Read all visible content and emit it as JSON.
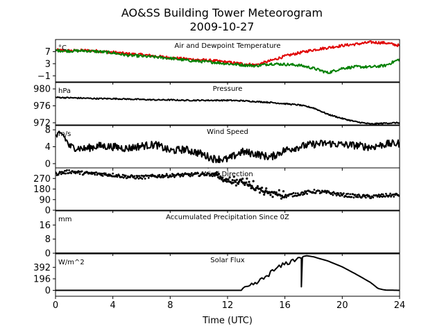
{
  "figure": {
    "title_line1": "AO&SS Building Tower Meteorogram",
    "title_line2": "2009-10-27",
    "xlabel": "Time (UTC)",
    "xticks": [
      "0",
      "4",
      "8",
      "12",
      "16",
      "20",
      "24"
    ]
  },
  "chart_data": [
    {
      "type": "line",
      "title": "Air and Dewpoint Temperature",
      "unit": "°C",
      "ylim": [
        -3,
        11
      ],
      "yticks": [
        -1,
        3,
        7
      ],
      "ytick_labels": [
        "−1",
        "3",
        "7"
      ],
      "x": [
        0,
        1,
        2,
        3,
        4,
        5,
        6,
        7,
        8,
        9,
        10,
        11,
        12,
        13,
        14,
        15,
        16,
        17,
        18,
        19,
        20,
        21,
        22,
        23,
        24
      ],
      "series": [
        {
          "color": "#e00000",
          "values": [
            7.5,
            7.3,
            7.4,
            7.2,
            6.8,
            6.3,
            6.0,
            5.5,
            5.0,
            4.6,
            4.3,
            4.0,
            3.5,
            3.0,
            2.6,
            4.0,
            5.5,
            6.6,
            7.6,
            8.3,
            9.0,
            9.5,
            10.1,
            9.9,
            9.0
          ]
        },
        {
          "color": "#008000",
          "values": [
            7.4,
            7.2,
            7.3,
            7.0,
            6.6,
            5.8,
            5.5,
            5.2,
            4.8,
            4.2,
            3.8,
            3.5,
            3.0,
            2.6,
            2.3,
            3.0,
            2.8,
            2.5,
            1.5,
            0.0,
            1.5,
            2.0,
            1.9,
            2.4,
            4.5
          ]
        }
      ],
      "noise": 0.45
    },
    {
      "type": "line",
      "title": "Pressure",
      "unit": "hPa",
      "ylim": [
        971.5,
        981.5
      ],
      "yticks": [
        972,
        976,
        980
      ],
      "ytick_labels": [
        "972",
        "976",
        "980"
      ],
      "x": [
        0,
        1,
        2,
        3,
        4,
        5,
        6,
        7,
        8,
        9,
        10,
        11,
        12,
        13,
        14,
        15,
        16,
        17,
        18,
        19,
        20,
        21,
        22,
        23,
        24
      ],
      "series": [
        {
          "color": "#000000",
          "values": [
            978.0,
            977.9,
            977.8,
            977.7,
            977.7,
            977.6,
            977.5,
            977.4,
            977.4,
            977.3,
            977.3,
            977.3,
            977.3,
            977.2,
            977.0,
            976.8,
            976.5,
            976.2,
            975.5,
            974.0,
            973.0,
            972.2,
            971.7,
            971.9,
            972.0
          ]
        }
      ],
      "noise": 0.15
    },
    {
      "type": "line",
      "title": "Wind Speed",
      "unit": "m/s",
      "ylim": [
        -1,
        9
      ],
      "yticks": [
        0,
        4,
        8
      ],
      "ytick_labels": [
        "0",
        "4",
        "8"
      ],
      "x": [
        0,
        0.5,
        1,
        2,
        3,
        4,
        5,
        6,
        7,
        8,
        9,
        10,
        11,
        12,
        13,
        14,
        15,
        16,
        17,
        18,
        19,
        20,
        21,
        22,
        23,
        24
      ],
      "series": [
        {
          "color": "#000000",
          "values": [
            6.5,
            7.0,
            4.0,
            3.5,
            4.2,
            4.0,
            3.6,
            4.2,
            4.5,
            3.0,
            3.4,
            2.5,
            1.2,
            1.0,
            2.8,
            2.3,
            1.5,
            3.2,
            4.0,
            4.6,
            4.8,
            4.5,
            4.3,
            3.9,
            4.6,
            4.8
          ]
        }
      ],
      "noise": 0.9
    },
    {
      "type": "scatter",
      "title": "Wind Direction",
      "unit": "",
      "ylim": [
        0,
        360
      ],
      "yticks": [
        0,
        90,
        180,
        270
      ],
      "ytick_labels": [
        "0",
        "90",
        "180",
        "270"
      ],
      "x": [
        0,
        1,
        2,
        3,
        4,
        5,
        6,
        7,
        8,
        9,
        10,
        11,
        12,
        13,
        14,
        15,
        16,
        17,
        18,
        19,
        20,
        21,
        22,
        23,
        24
      ],
      "series": [
        {
          "color": "#000000",
          "values": [
            310,
            330,
            315,
            310,
            300,
            285,
            280,
            290,
            295,
            300,
            305,
            310,
            250,
            240,
            180,
            150,
            120,
            140,
            160,
            150,
            130,
            120,
            115,
            125,
            130
          ]
        }
      ],
      "noise": 15
    },
    {
      "type": "line",
      "title": "Accumulated Precipitation Since 0Z",
      "unit": "mm",
      "ylim": [
        0,
        24
      ],
      "yticks": [
        0,
        8,
        16
      ],
      "ytick_labels": [
        "0",
        "8",
        "16"
      ],
      "x": [
        0,
        24
      ],
      "series": [
        {
          "color": "#000000",
          "values": [
            0,
            0
          ]
        }
      ],
      "noise": 0
    },
    {
      "type": "line",
      "title": "Solar Flux",
      "unit": "W/m^2",
      "ylim": [
        -100,
        620
      ],
      "yticks": [
        0,
        196,
        392
      ],
      "ytick_labels": [
        "0",
        "196",
        "392"
      ],
      "x": [
        0,
        13,
        13.5,
        14,
        14.5,
        15,
        15.5,
        16,
        16.5,
        17,
        17.5,
        18,
        19,
        20,
        21,
        22,
        22.5,
        23,
        24
      ],
      "series": [
        {
          "color": "#000000",
          "values": [
            0,
            0,
            60,
            120,
            200,
            300,
            380,
            450,
            500,
            560,
            590,
            570,
            500,
            400,
            270,
            130,
            30,
            5,
            0
          ]
        }
      ],
      "noise": 0
    }
  ]
}
